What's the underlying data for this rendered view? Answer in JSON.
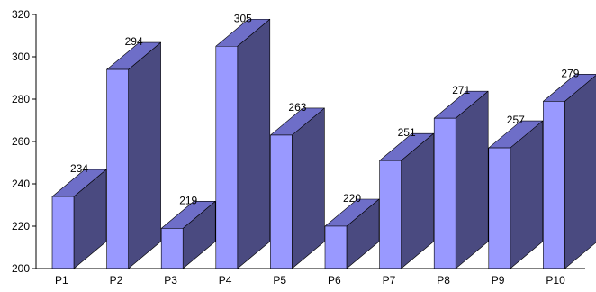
{
  "chart_data": {
    "type": "bar",
    "style": "3d-column",
    "categories": [
      "P1",
      "P2",
      "P3",
      "P4",
      "P5",
      "P6",
      "P7",
      "P8",
      "P9",
      "P10"
    ],
    "values": [
      234,
      294,
      219,
      305,
      263,
      220,
      251,
      271,
      257,
      279
    ],
    "data_labels": [
      "234",
      "294",
      "219",
      "305",
      "263",
      "220",
      "251",
      "271",
      "257",
      "279"
    ],
    "y_ticks": [
      200,
      220,
      240,
      260,
      280,
      300,
      320
    ],
    "ylim": [
      200,
      320
    ],
    "title": "",
    "xlabel": "",
    "ylabel": "",
    "grid": false,
    "colors": {
      "front": "#9999FF",
      "side": "#4A4A80",
      "top": "#6E6EC8",
      "axis": "#000000"
    }
  }
}
